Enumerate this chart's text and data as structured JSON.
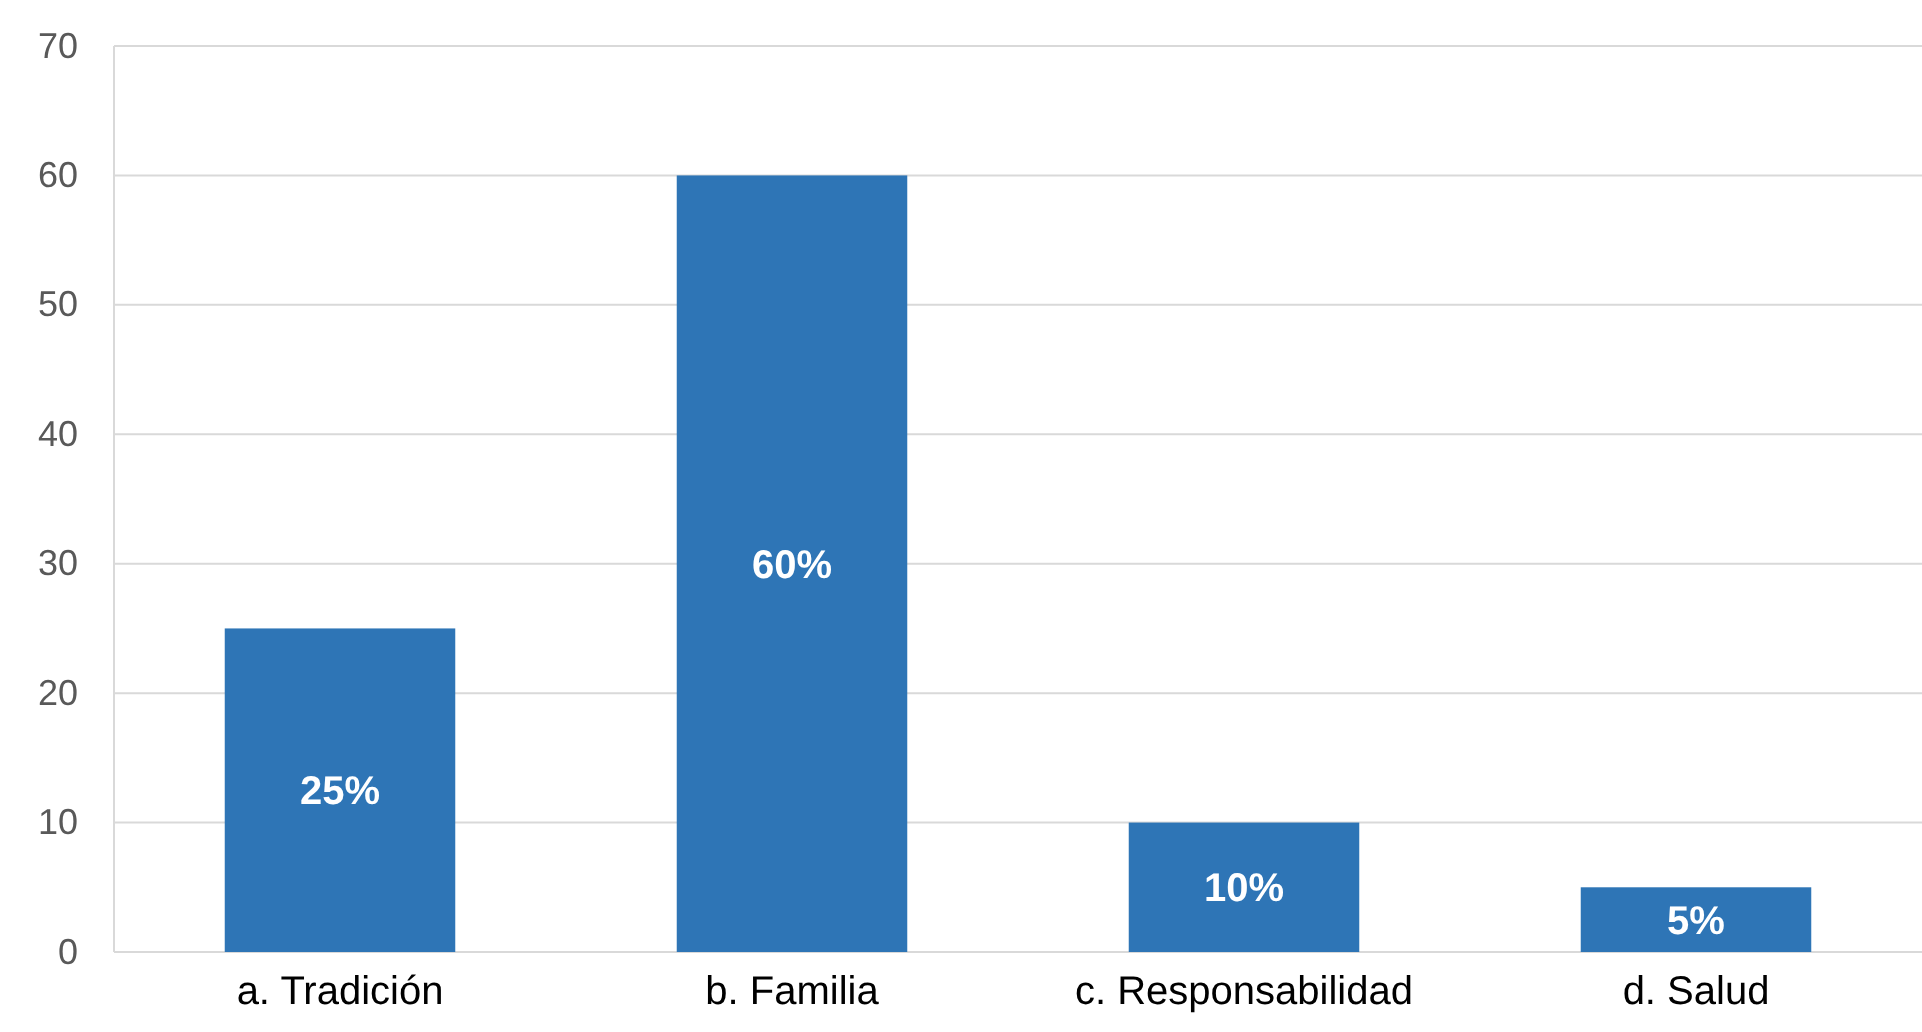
{
  "chart_data": {
    "type": "bar",
    "categories": [
      "a. Tradición",
      "b. Familia",
      "c. Responsabilidad",
      "d. Salud"
    ],
    "values": [
      25,
      60,
      10,
      5
    ],
    "value_labels": [
      "25%",
      "60%",
      "10%",
      "5%"
    ],
    "color": "#2e75b6",
    "ylim": [
      0,
      70
    ],
    "yticks": [
      0,
      10,
      20,
      30,
      40,
      50,
      60,
      70
    ],
    "grid": "y"
  }
}
